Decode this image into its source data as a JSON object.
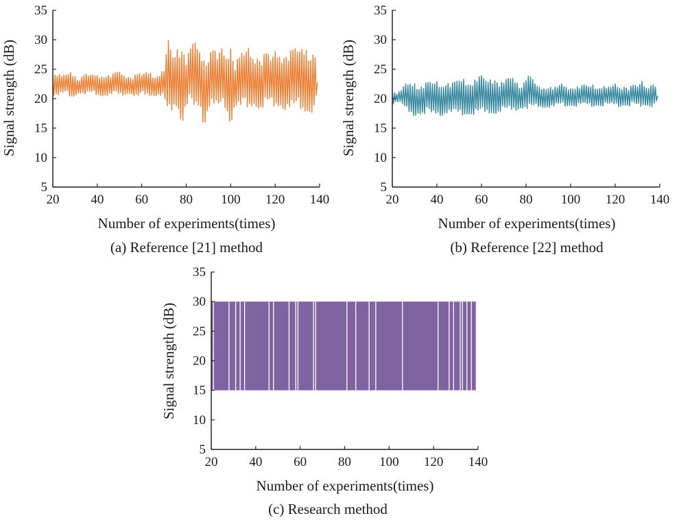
{
  "chart_data": [
    {
      "type": "line",
      "caption": "(a) Reference [21] method",
      "xlabel": "Number of experiments(times)",
      "ylabel": "Signal strength (dB)",
      "xlim": [
        20,
        140
      ],
      "ylim": [
        5,
        35
      ],
      "xticks": [
        20,
        40,
        60,
        80,
        100,
        120,
        140
      ],
      "yticks": [
        5,
        10,
        15,
        20,
        25,
        30,
        35
      ],
      "grid": false,
      "color": "#ED7D31",
      "x": [
        20,
        22,
        24,
        26,
        28,
        30,
        32,
        34,
        36,
        38,
        40,
        42,
        44,
        46,
        48,
        50,
        52,
        54,
        56,
        58,
        60,
        62,
        64,
        66,
        68,
        70,
        72,
        74,
        76,
        78,
        80,
        82,
        84,
        86,
        88,
        90,
        92,
        94,
        96,
        98,
        100,
        102,
        104,
        106,
        108,
        110,
        112,
        114,
        116,
        118,
        120,
        122,
        124,
        126,
        128,
        130,
        132,
        134,
        136,
        138,
        139
      ],
      "y_max": [
        24.5,
        24.5,
        24.0,
        24.0,
        24.5,
        24.0,
        23.5,
        24.5,
        24.0,
        24.0,
        24.0,
        24.0,
        24.5,
        24.0,
        24.5,
        24.5,
        24.0,
        24.0,
        24.0,
        24.5,
        24.0,
        24.5,
        24.5,
        24.0,
        24.5,
        25.0,
        30.0,
        27.0,
        29.0,
        30.5,
        27.0,
        29.0,
        29.5,
        28.0,
        27.5,
        28.0,
        29.5,
        27.0,
        28.5,
        27.0,
        30.0,
        26.5,
        28.0,
        27.5,
        28.5,
        27.0,
        28.0,
        27.5,
        28.5,
        26.5,
        28.0,
        27.5,
        28.5,
        28.0,
        29.0,
        28.0,
        28.5,
        29.0,
        28.5,
        28.5,
        23.0
      ],
      "y_min": [
        20.5,
        20.5,
        20.5,
        21.0,
        20.0,
        20.5,
        21.0,
        20.5,
        20.5,
        21.0,
        20.5,
        20.5,
        20.5,
        20.5,
        20.5,
        20.5,
        20.5,
        21.0,
        20.5,
        20.0,
        20.5,
        20.5,
        20.5,
        20.5,
        20.5,
        20.0,
        16.0,
        18.0,
        19.0,
        15.5,
        18.5,
        19.0,
        17.0,
        19.0,
        15.0,
        18.5,
        19.0,
        17.0,
        19.0,
        18.0,
        15.5,
        19.0,
        18.0,
        18.5,
        17.5,
        19.0,
        18.5,
        18.0,
        19.0,
        18.5,
        18.0,
        19.0,
        18.0,
        18.5,
        17.5,
        18.5,
        17.5,
        18.0,
        17.5,
        18.0,
        22.5
      ]
    },
    {
      "type": "line",
      "caption": "(b) Reference [22] method",
      "xlabel": "Number of experiments(times)",
      "ylabel": "Signal strength (dB)",
      "xlim": [
        20,
        140
      ],
      "ylim": [
        5,
        35
      ],
      "xticks": [
        20,
        40,
        60,
        80,
        100,
        120,
        140
      ],
      "yticks": [
        5,
        10,
        15,
        20,
        25,
        30,
        35
      ],
      "grid": false,
      "color": "#31859C",
      "x": [
        20,
        22,
        24,
        26,
        28,
        30,
        32,
        34,
        36,
        38,
        40,
        42,
        44,
        46,
        48,
        50,
        52,
        54,
        56,
        58,
        60,
        62,
        64,
        66,
        68,
        70,
        72,
        74,
        76,
        78,
        80,
        82,
        84,
        86,
        88,
        90,
        92,
        94,
        96,
        98,
        100,
        102,
        104,
        106,
        108,
        110,
        112,
        114,
        116,
        118,
        120,
        122,
        124,
        126,
        128,
        130,
        132,
        134,
        136,
        138,
        139
      ],
      "y_max": [
        21.5,
        21.0,
        21.5,
        22.5,
        22.5,
        23.0,
        22.5,
        22.5,
        23.0,
        22.5,
        23.0,
        22.5,
        23.5,
        22.5,
        23.0,
        23.0,
        23.5,
        23.0,
        23.5,
        23.5,
        24.0,
        23.0,
        23.5,
        24.0,
        23.0,
        23.0,
        23.5,
        23.5,
        23.0,
        22.5,
        24.0,
        24.0,
        22.5,
        22.0,
        22.0,
        22.5,
        22.0,
        22.0,
        22.5,
        22.0,
        22.0,
        22.5,
        22.0,
        22.5,
        22.0,
        22.5,
        22.0,
        22.5,
        22.0,
        22.0,
        22.5,
        22.0,
        22.5,
        22.0,
        22.5,
        22.0,
        23.0,
        22.0,
        23.0,
        22.5,
        21.0
      ],
      "y_min": [
        19.0,
        19.5,
        19.0,
        18.0,
        17.5,
        17.0,
        17.5,
        17.0,
        17.5,
        17.0,
        17.5,
        17.0,
        17.5,
        17.5,
        17.0,
        17.5,
        17.0,
        17.5,
        17.0,
        17.5,
        17.0,
        17.5,
        17.5,
        17.5,
        17.5,
        18.0,
        17.5,
        18.0,
        18.0,
        18.5,
        18.0,
        18.0,
        18.5,
        18.5,
        18.5,
        18.5,
        18.5,
        18.5,
        19.0,
        18.5,
        19.0,
        18.5,
        19.0,
        18.5,
        19.0,
        18.5,
        19.0,
        18.5,
        19.0,
        18.5,
        19.0,
        18.5,
        19.0,
        18.5,
        19.0,
        18.5,
        18.5,
        19.0,
        18.5,
        19.0,
        20.0
      ]
    },
    {
      "type": "bar",
      "caption": "(c) Research method",
      "xlabel": "Number of experiments(times)",
      "ylabel": "Signal strength (dB)",
      "xlim": [
        20,
        140
      ],
      "ylim": [
        5,
        35
      ],
      "xticks": [
        20,
        40,
        60,
        80,
        100,
        120,
        140
      ],
      "yticks": [
        5,
        10,
        15,
        20,
        25,
        30,
        35
      ],
      "grid": false,
      "color": "#8064A2",
      "x_range": [
        20,
        139
      ],
      "y_min": 15,
      "y_max": 30,
      "gaps_x": [
        21,
        28,
        31,
        33,
        35,
        46,
        48,
        55,
        58,
        59,
        66,
        67,
        81,
        85,
        91,
        94,
        106,
        122,
        127,
        129,
        132,
        133,
        135,
        137
      ]
    }
  ]
}
